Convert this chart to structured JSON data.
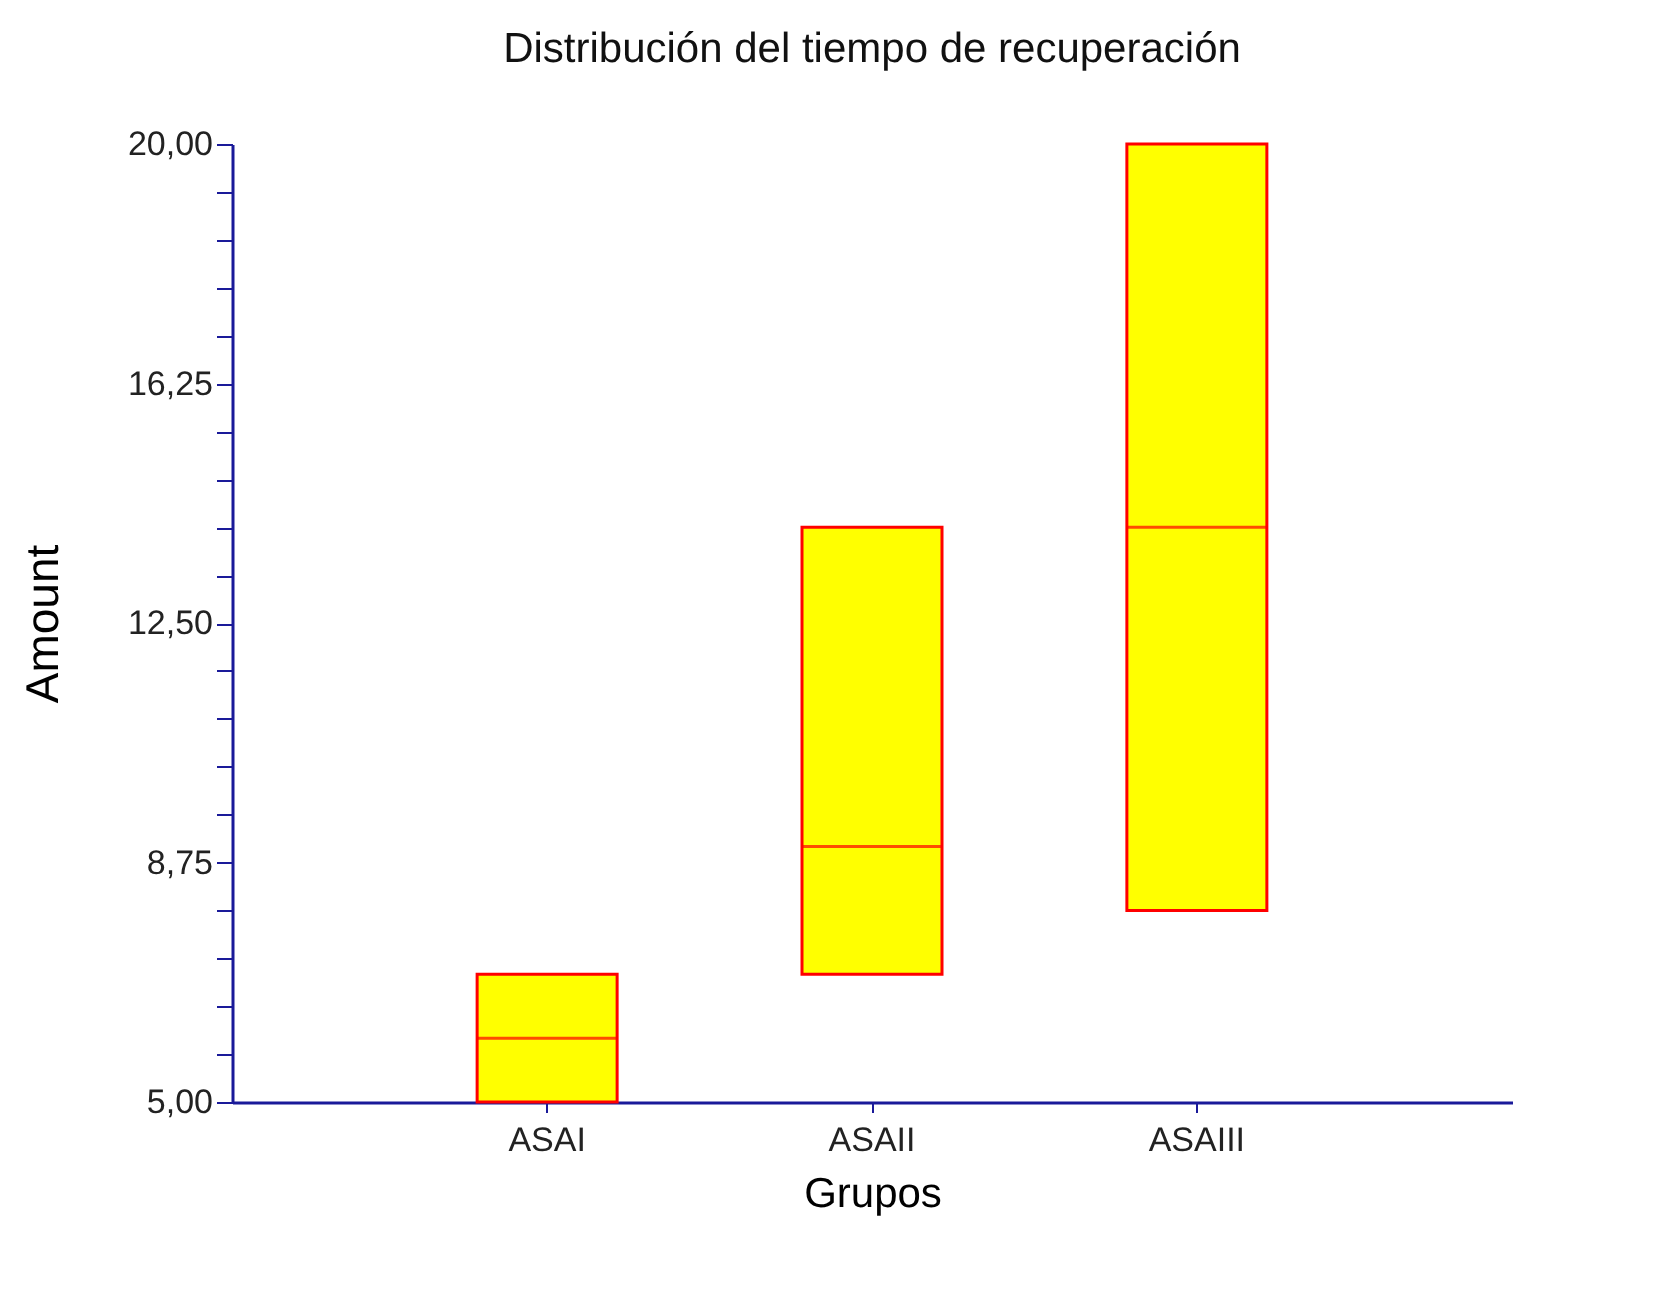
{
  "chart_data": {
    "type": "box",
    "title": "Distribución del tiempo de recuperación",
    "xlabel": "Grupos",
    "ylabel": "Amount",
    "categories": [
      "ASAI",
      "ASAII",
      "ASAIII"
    ],
    "boxes": [
      {
        "low": 5,
        "q1": 5,
        "median": 6,
        "q3": 7,
        "high": 7
      },
      {
        "low": 7,
        "q1": 7,
        "median": 9,
        "q3": 14,
        "high": 14
      },
      {
        "low": 8,
        "q1": 8,
        "median": 14,
        "q3": 20,
        "high": 20
      }
    ],
    "color": "#ffff00",
    "ylim": [
      5,
      20
    ],
    "yticks": [
      {
        "value": 5,
        "label": "5,00"
      },
      {
        "value": 5.75,
        "label": null
      },
      {
        "value": 6.5,
        "label": null
      },
      {
        "value": 7.25,
        "label": null
      },
      {
        "value": 8,
        "label": null
      },
      {
        "value": 8.75,
        "label": "8,75"
      },
      {
        "value": 9.5,
        "label": null
      },
      {
        "value": 10.25,
        "label": null
      },
      {
        "value": 11,
        "label": null
      },
      {
        "value": 11.75,
        "label": null
      },
      {
        "value": 12.5,
        "label": "12,50"
      },
      {
        "value": 13.25,
        "label": null
      },
      {
        "value": 14,
        "label": null
      },
      {
        "value": 14.75,
        "label": null
      },
      {
        "value": 15.5,
        "label": null
      },
      {
        "value": 16.25,
        "label": "16,25"
      },
      {
        "value": 17,
        "label": null
      },
      {
        "value": 17.75,
        "label": null
      },
      {
        "value": 18.5,
        "label": null
      },
      {
        "value": 19.25,
        "label": null
      },
      {
        "value": 20,
        "label": "20,00"
      }
    ],
    "grid": false
  }
}
